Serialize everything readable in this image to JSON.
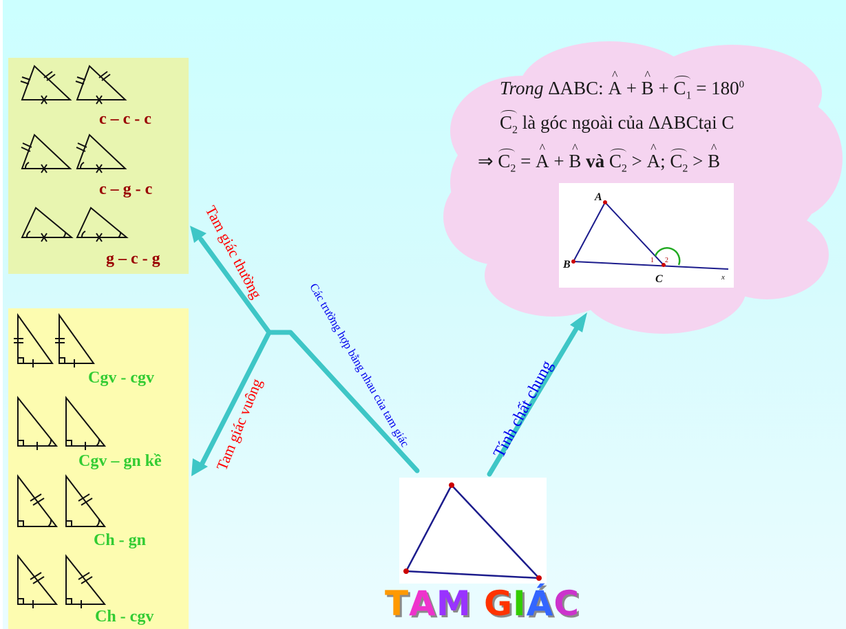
{
  "colors": {
    "arrow": "#3ec6c6",
    "red_label": "#ff0000",
    "blue_label": "#0000ee",
    "dark_red": "#990000",
    "green": "#33cc33",
    "cloud": "#f5d4f0",
    "triangle_line": "#1c1c8c",
    "vertex_dot": "#cc0000"
  },
  "branches": {
    "thuong": "Tam giác thường",
    "vuong": "Tam giác vuông",
    "bang_nhau": "Các trường hợp bằng nhau của tam giác",
    "tinh_chat": "Tính chất chung"
  },
  "general_cases": [
    "c – c - c",
    "c – g - c",
    "g – c - g"
  ],
  "right_cases": [
    "Cgv - cgv",
    "Cgv – gn kề",
    "Ch - gn",
    "Ch - cgv"
  ],
  "center": {
    "title_letters": [
      "T",
      "A",
      "M",
      " ",
      "G",
      "I",
      "Á",
      "C"
    ],
    "title_colors": [
      "#ff9900",
      "#ee33cc",
      "#9933ff",
      "#ffffff",
      "#ff3300",
      "#33cc00",
      "#3366ff",
      "#cc33cc"
    ]
  },
  "formula": {
    "line1_prefix": "Trong",
    "triangle": "ΔABC:",
    "A": "A",
    "B": "B",
    "C": "C",
    "sub1": "1",
    "sub2": "2",
    "plus": "+",
    "eq180": "= 180",
    "deg": "0",
    "line2_text": "là góc ngoài của",
    "tri2": "ΔABC",
    "tai": "tại C",
    "implies": "⇒",
    "eq": "=",
    "va": "và",
    "gt": ">",
    "semi": ";"
  },
  "figure_labels": {
    "A": "A",
    "B": "B",
    "C": "C",
    "x": "x",
    "angle1": "1",
    "angle2": "2"
  }
}
